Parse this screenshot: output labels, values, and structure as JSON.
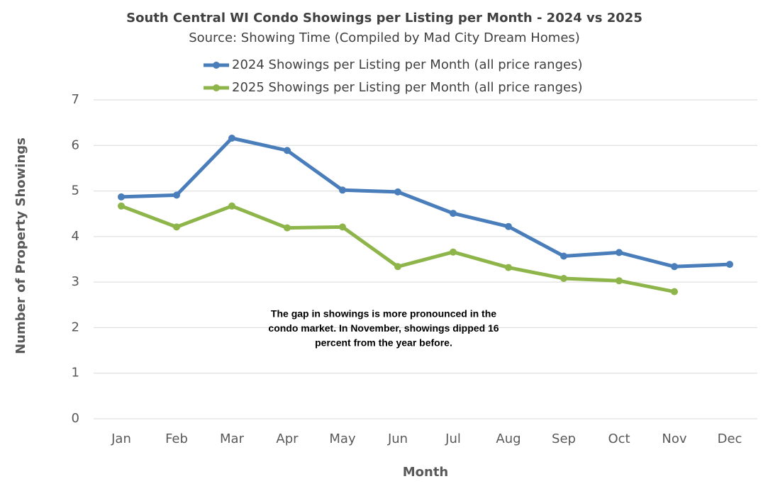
{
  "chart_data": {
    "type": "line",
    "title": "South Central WI Condo Showings per Listing per Month - 2024 vs 2025",
    "subtitle": "Source: Showing Time (Compiled by Mad City Dream Homes)",
    "x_label": "Month",
    "y_label": "Number of Property Showings",
    "annotation": [
      "The gap in showings is more pronounced in the",
      "condo market. In November, showings dipped 16",
      "percent from the year before."
    ],
    "categories": [
      "Jan",
      "Feb",
      "Mar",
      "Apr",
      "May",
      "Jun",
      "Jul",
      "Aug",
      "Sep",
      "Oct",
      "Nov",
      "Dec"
    ],
    "series": [
      {
        "name": "2024 Showings per Listing per Month (all price ranges)",
        "color": "#4a7ebb",
        "values": [
          4.87,
          4.91,
          6.16,
          5.89,
          5.02,
          4.98,
          4.51,
          4.22,
          3.57,
          3.65,
          3.34,
          3.39
        ]
      },
      {
        "name": "2025 Showings per Listing per Month (all price ranges)",
        "color": "#8db54a",
        "values": [
          4.67,
          4.21,
          4.67,
          4.19,
          4.21,
          3.34,
          3.66,
          3.32,
          3.08,
          3.03,
          2.79,
          null
        ]
      }
    ],
    "ylim": [
      0,
      7
    ],
    "yticks": [
      0,
      1,
      2,
      3,
      4,
      5,
      6,
      7
    ],
    "grid": true
  }
}
